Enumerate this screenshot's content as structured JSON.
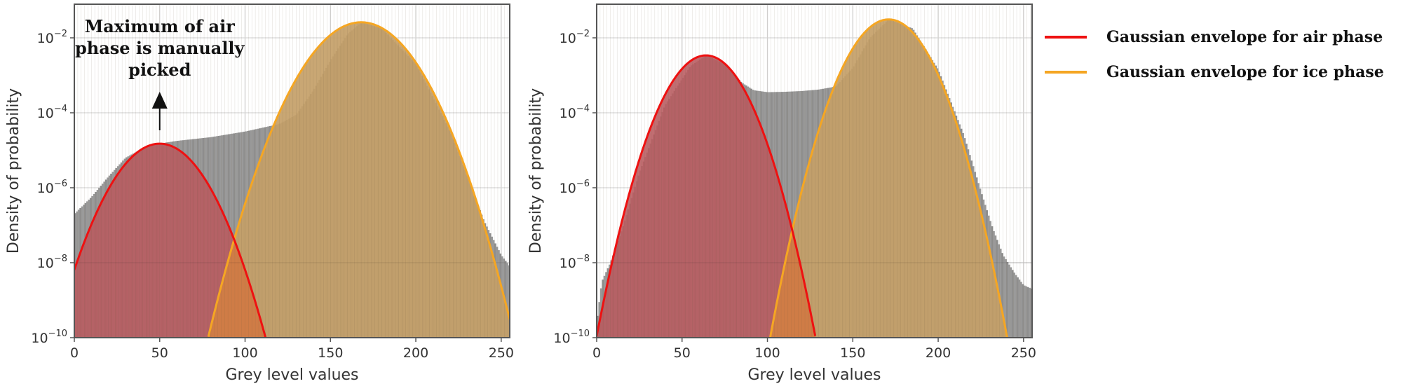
{
  "colors": {
    "air": "#ee1111",
    "ice": "#f5a623",
    "histogram": "#9a9a9a",
    "air_fill": "#b85a5e",
    "ice_fill": "#c4a068",
    "overlap_fill": "#d07a45",
    "grid": "#dddddd"
  },
  "legend": {
    "items": [
      {
        "label": "Gaussian envelope for air phase",
        "color": "#ee1111"
      },
      {
        "label": "Gaussian envelope for ice phase",
        "color": "#f5a623"
      }
    ]
  },
  "chart_data": [
    {
      "type": "bar",
      "title": "",
      "xlabel": "Grey level values",
      "ylabel": "Density of probability",
      "xlim": [
        0,
        255
      ],
      "ylim": [
        1e-10,
        0.08
      ],
      "yscale": "log",
      "grid": true,
      "xticks": [
        0,
        50,
        100,
        150,
        200,
        250
      ],
      "yticks": [
        "10^-10",
        "10^-8",
        "10^-6",
        "10^-4",
        "10^-2"
      ],
      "annotation": {
        "text": [
          "Maximum of air",
          "phase is manually",
          "picked"
        ],
        "arrow_x": 50
      },
      "histogram_profile": {
        "x": [
          0,
          10,
          20,
          30,
          40,
          50,
          60,
          80,
          100,
          120,
          130,
          140,
          150,
          160,
          168,
          180,
          200,
          220,
          230,
          240,
          250,
          255
        ],
        "log10_y": [
          -6.7,
          -6.25,
          -5.7,
          -5.2,
          -4.95,
          -4.82,
          -4.75,
          -4.65,
          -4.5,
          -4.3,
          -4.05,
          -3.4,
          -2.6,
          -1.9,
          -1.59,
          -1.75,
          -2.7,
          -4.5,
          -5.7,
          -6.9,
          -7.8,
          -8.1
        ]
      },
      "series": [
        {
          "name": "Gaussian envelope for air phase",
          "mean": 50,
          "peak": 1.5e-05,
          "sigma": 12.7
        },
        {
          "name": "Gaussian envelope for ice phase",
          "mean": 168,
          "peak": 0.026,
          "sigma": 14.4
        }
      ]
    },
    {
      "type": "bar",
      "title": "",
      "xlabel": "Grey level values",
      "ylabel": "Density of probability",
      "xlim": [
        0,
        255
      ],
      "ylim": [
        1e-10,
        0.08
      ],
      "yscale": "log",
      "grid": true,
      "xticks": [
        0,
        50,
        100,
        150,
        200,
        250
      ],
      "yticks": [
        "10^-10",
        "10^-8",
        "10^-6",
        "10^-4",
        "10^-2"
      ],
      "histogram_profile": {
        "x": [
          0,
          3,
          8,
          15,
          25,
          40,
          55,
          64,
          75,
          85,
          92,
          100,
          110,
          120,
          130,
          140,
          150,
          160,
          171,
          185,
          200,
          215,
          225,
          232,
          238,
          245,
          250,
          255
        ],
        "log10_y": [
          -9.6,
          -8.5,
          -8.0,
          -7.1,
          -5.6,
          -3.8,
          -2.75,
          -2.47,
          -2.7,
          -3.2,
          -3.4,
          -3.45,
          -3.44,
          -3.42,
          -3.38,
          -3.3,
          -2.8,
          -2.0,
          -1.51,
          -1.75,
          -2.85,
          -4.6,
          -6.1,
          -7.1,
          -7.8,
          -8.3,
          -8.6,
          -8.7
        ]
      },
      "series": [
        {
          "name": "Gaussian envelope for air phase",
          "mean": 64,
          "peak": 0.0034,
          "sigma": 10.9
        },
        {
          "name": "Gaussian envelope for ice phase",
          "mean": 171,
          "peak": 0.031,
          "sigma": 11.1
        }
      ]
    }
  ],
  "tick_labels": {
    "x": [
      "0",
      "50",
      "100",
      "150",
      "200",
      "250"
    ],
    "y_base": "10",
    "y_exp": [
      "−10",
      "−8",
      "−6",
      "−4",
      "−2"
    ]
  }
}
